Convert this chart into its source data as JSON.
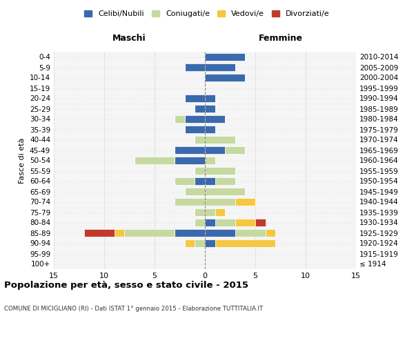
{
  "age_groups": [
    "100+",
    "95-99",
    "90-94",
    "85-89",
    "80-84",
    "75-79",
    "70-74",
    "65-69",
    "60-64",
    "55-59",
    "50-54",
    "45-49",
    "40-44",
    "35-39",
    "30-34",
    "25-29",
    "20-24",
    "15-19",
    "10-14",
    "5-9",
    "0-4"
  ],
  "birth_years": [
    "≤ 1914",
    "1915-1919",
    "1920-1924",
    "1925-1929",
    "1930-1934",
    "1935-1939",
    "1940-1944",
    "1945-1949",
    "1950-1954",
    "1955-1959",
    "1960-1964",
    "1965-1969",
    "1970-1974",
    "1975-1979",
    "1980-1984",
    "1985-1989",
    "1990-1994",
    "1995-1999",
    "2000-2004",
    "2005-2009",
    "2010-2014"
  ],
  "colors": {
    "celibi": "#3a6aad",
    "coniugati": "#c5d9a0",
    "vedovi": "#f5c842",
    "divorziati": "#c0392b"
  },
  "maschi": {
    "celibi": [
      0,
      0,
      0,
      3,
      0,
      0,
      0,
      0,
      1,
      0,
      3,
      3,
      0,
      2,
      2,
      1,
      2,
      0,
      0,
      2,
      0
    ],
    "coniugati": [
      0,
      0,
      1,
      5,
      1,
      1,
      3,
      2,
      2,
      1,
      4,
      0,
      1,
      0,
      1,
      0,
      0,
      0,
      0,
      0,
      0
    ],
    "vedovi": [
      0,
      0,
      1,
      1,
      0,
      0,
      0,
      0,
      0,
      0,
      0,
      0,
      0,
      0,
      0,
      0,
      0,
      0,
      0,
      0,
      0
    ],
    "divorziati": [
      0,
      0,
      0,
      3,
      0,
      0,
      0,
      0,
      0,
      0,
      0,
      0,
      0,
      0,
      0,
      0,
      0,
      0,
      0,
      0,
      0
    ]
  },
  "femmine": {
    "celibi": [
      0,
      0,
      1,
      3,
      1,
      0,
      0,
      0,
      1,
      0,
      0,
      2,
      0,
      1,
      2,
      1,
      1,
      0,
      4,
      3,
      4
    ],
    "coniugati": [
      0,
      0,
      0,
      3,
      2,
      1,
      3,
      4,
      2,
      3,
      1,
      2,
      3,
      0,
      0,
      0,
      0,
      0,
      0,
      0,
      0
    ],
    "vedovi": [
      0,
      0,
      6,
      1,
      2,
      1,
      2,
      0,
      0,
      0,
      0,
      0,
      0,
      0,
      0,
      0,
      0,
      0,
      0,
      0,
      0
    ],
    "divorziati": [
      0,
      0,
      0,
      0,
      1,
      0,
      0,
      0,
      0,
      0,
      0,
      0,
      0,
      0,
      0,
      0,
      0,
      0,
      0,
      0,
      0
    ]
  },
  "xlim": 15,
  "title": "Popolazione per età, sesso e stato civile - 2015",
  "subtitle": "COMUNE DI MICIGLIANO (RI) - Dati ISTAT 1° gennaio 2015 - Elaborazione TUTTITALIA.IT",
  "xlabel_left": "Maschi",
  "xlabel_right": "Femmine",
  "ylabel_left": "Fasce di età",
  "legend_labels": [
    "Celibi/Nubili",
    "Coniugati/e",
    "Vedovi/e",
    "Divorziati/e"
  ]
}
